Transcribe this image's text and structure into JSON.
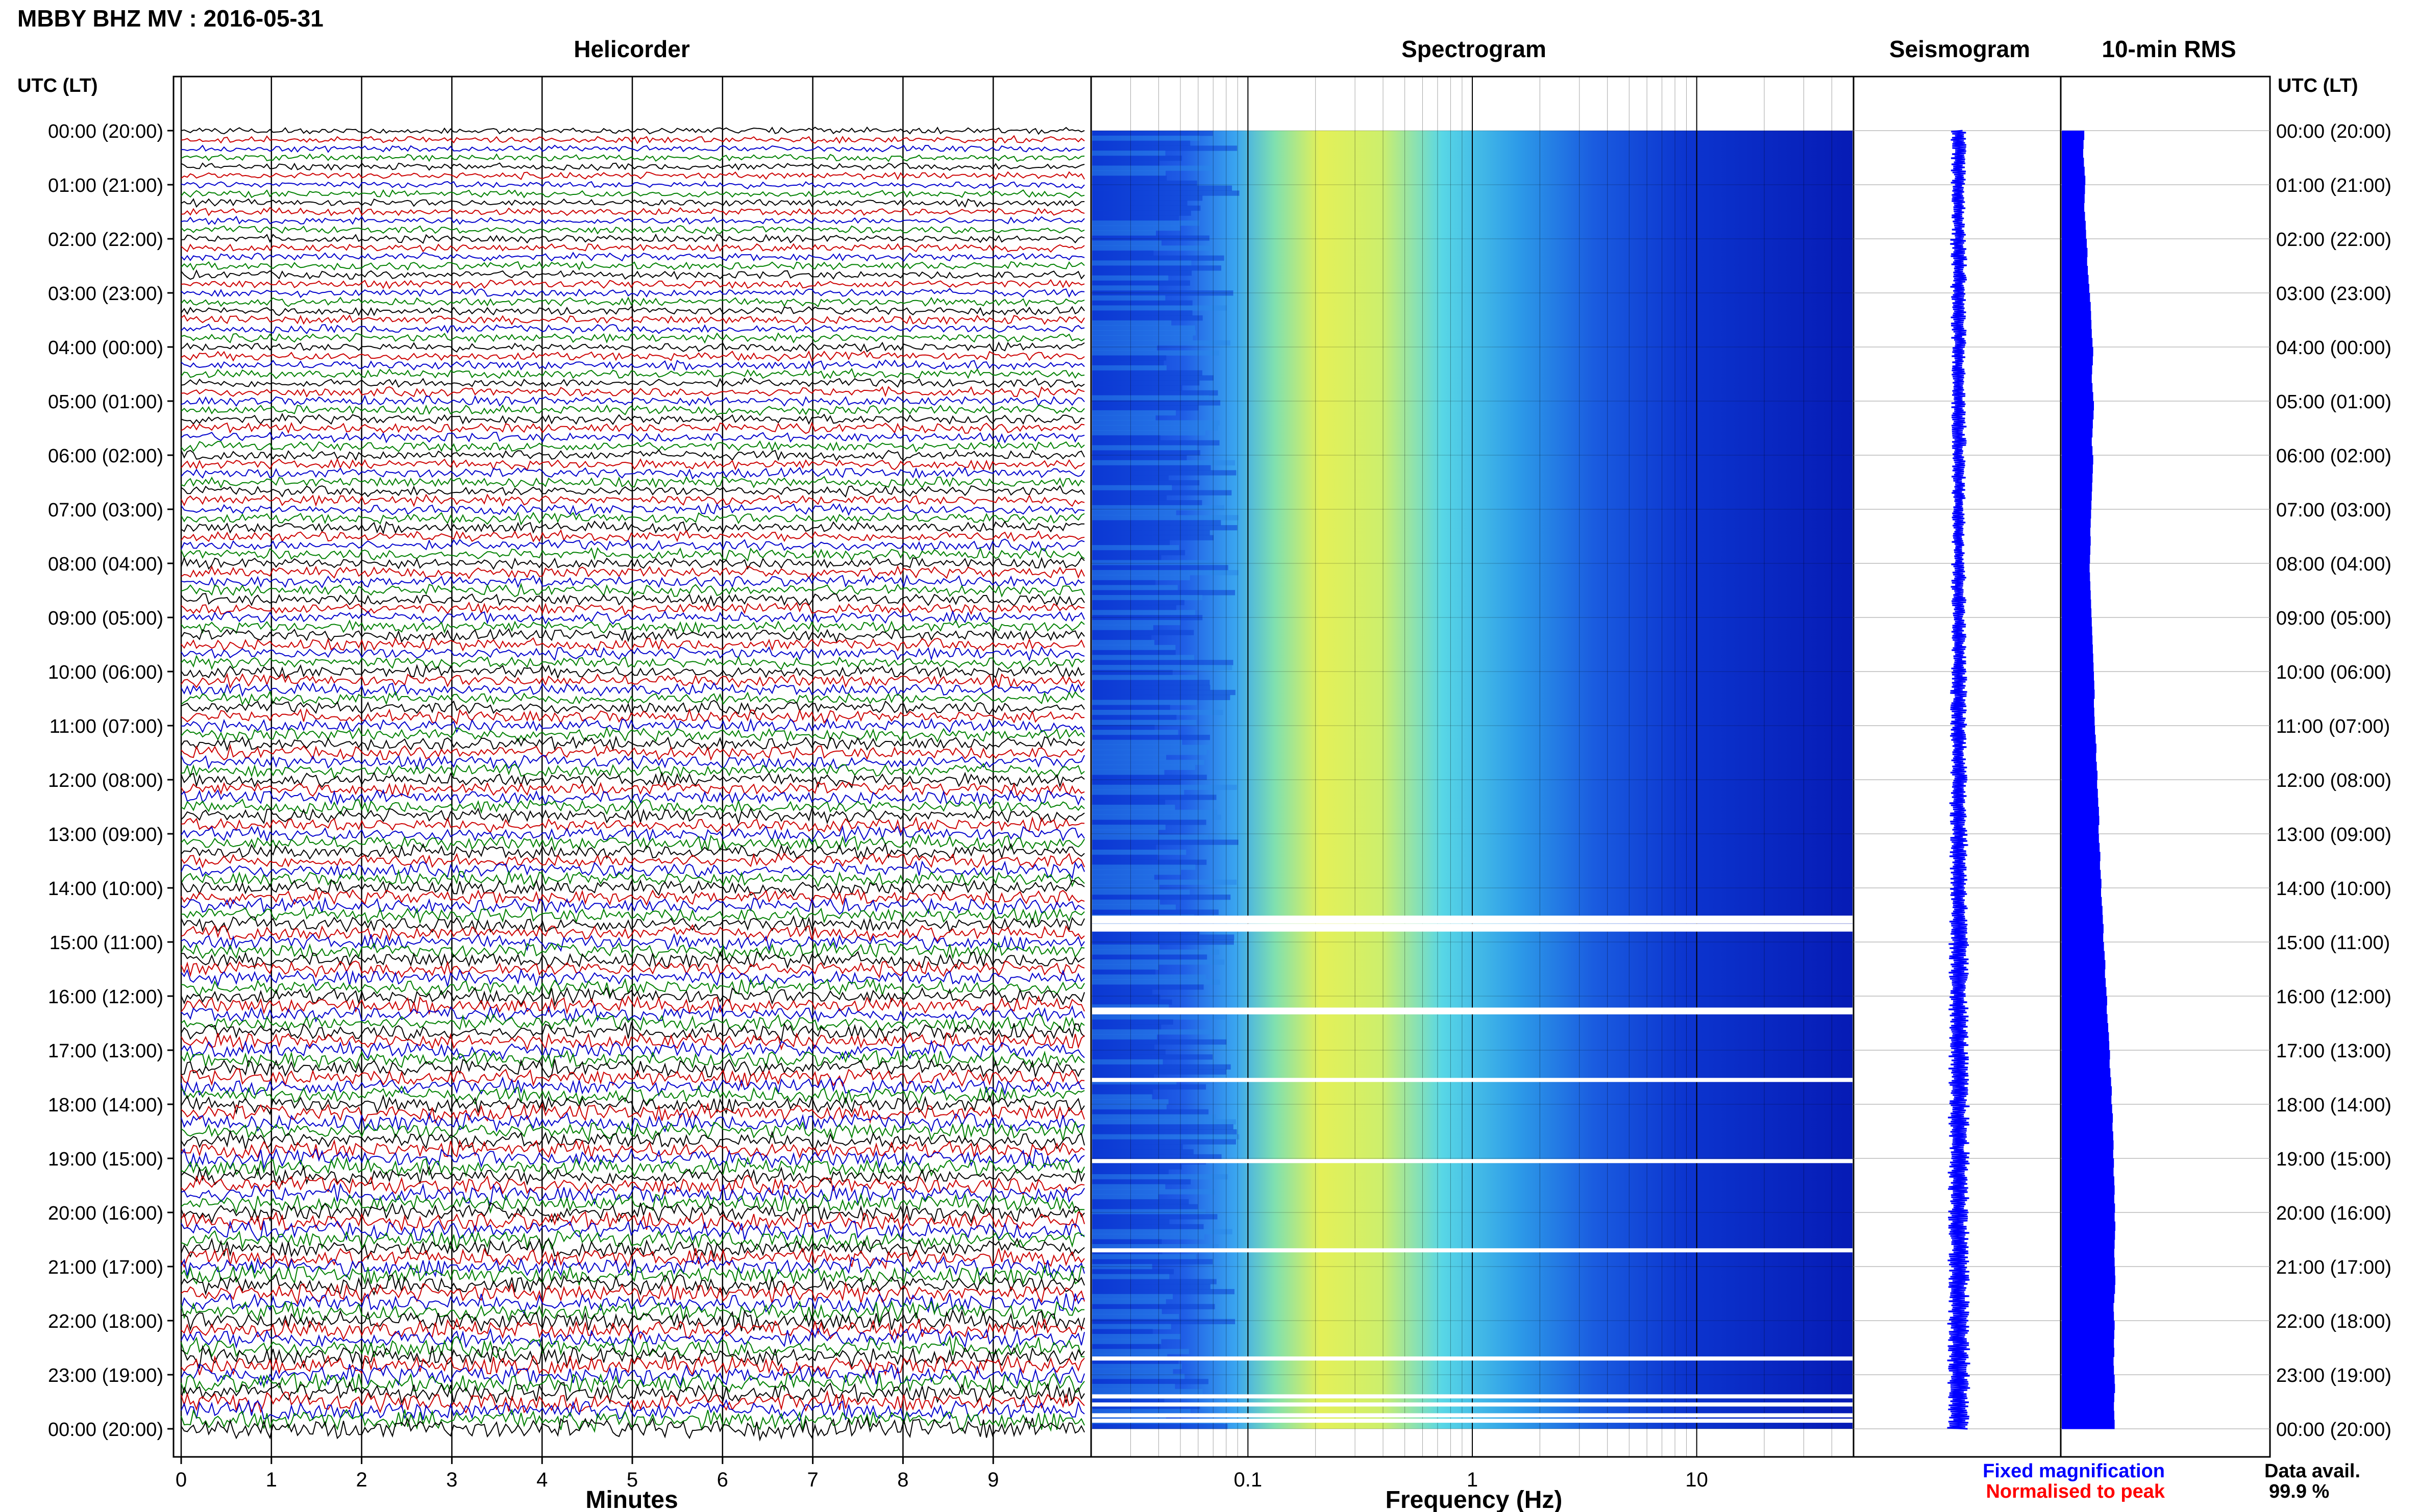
{
  "header": {
    "station_title": "MBBY BHZ MV : 2016-05-31",
    "utc_label_left": "UTC (LT)",
    "utc_label_right": "UTC (LT)"
  },
  "panels": {
    "helicorder_title": "Helicorder",
    "spectrogram_title": "Spectrogram",
    "seismogram_title": "Seismogram",
    "rms_title": "10-min RMS"
  },
  "legend": {
    "fixed_magnification": "Fixed magnification",
    "normalised_to_peak": "Normalised to peak",
    "fixed_color": "#0000ff",
    "normalised_color": "#ff0000"
  },
  "data_availability": {
    "label": "Data avail.",
    "value": "99.9 %"
  },
  "colors": {
    "trace_cycle": [
      "#000000",
      "#cc0000",
      "#0000cc",
      "#008000"
    ],
    "seismogram": "#0000ff",
    "rms_bar": "#0000ff"
  },
  "chart_data": [
    {
      "type": "line",
      "name": "helicorder",
      "xlabel": "Minutes",
      "x_ticks": [
        "0",
        "1",
        "2",
        "3",
        "4",
        "5",
        "6",
        "7",
        "8",
        "9"
      ],
      "xlim": [
        0,
        10
      ],
      "y_tick_labels": [
        "00:00 (20:00)",
        "01:00 (21:00)",
        "02:00 (22:00)",
        "03:00 (23:00)",
        "04:00 (00:00)",
        "05:00 (01:00)",
        "06:00 (02:00)",
        "07:00 (03:00)",
        "08:00 (04:00)",
        "09:00 (05:00)",
        "10:00 (06:00)",
        "11:00 (07:00)",
        "12:00 (08:00)",
        "13:00 (09:00)",
        "14:00 (10:00)",
        "15:00 (11:00)",
        "16:00 (12:00)",
        "17:00 (13:00)",
        "18:00 (14:00)",
        "19:00 (15:00)",
        "20:00 (16:00)",
        "21:00 (17:00)",
        "22:00 (18:00)",
        "23:00 (19:00)",
        "00:00 (20:00)"
      ],
      "traces_per_hour": 6,
      "hours": 24
    },
    {
      "type": "heatmap",
      "name": "spectrogram",
      "xlabel": "Frequency (Hz)",
      "x_scale": "log",
      "x_ticks": [
        "0.1",
        "1",
        "10"
      ],
      "xlim": [
        0.02,
        50
      ],
      "hours": 24,
      "gaps_utc_hours": [
        14.55,
        14.62,
        14.7,
        14.77,
        16.25,
        16.3,
        17.55,
        19.05,
        20.7,
        22.7,
        23.4,
        23.55,
        23.75,
        23.85
      ]
    },
    {
      "type": "line",
      "name": "seismogram",
      "hours": 24,
      "relative_amplitude": [
        1.0,
        0.9,
        1.1,
        1.0,
        0.9,
        1.0,
        0.9,
        0.9,
        1.0,
        1.0,
        1.1,
        1.1,
        1.2,
        1.2,
        1.2,
        1.3,
        1.3,
        1.3,
        1.4,
        1.4,
        1.4,
        1.4,
        1.5,
        1.5
      ]
    },
    {
      "type": "bar",
      "name": "10-min RMS",
      "hours": 24,
      "values": [
        0.63,
        0.61,
        0.6,
        0.62,
        0.64,
        0.66,
        0.65,
        0.64,
        0.63,
        0.65,
        0.67,
        0.68,
        0.7,
        0.72,
        0.71,
        0.73,
        0.75,
        0.77,
        0.79,
        0.81,
        0.82,
        0.83,
        0.84,
        0.86,
        0.88,
        0.87,
        0.85,
        0.84,
        0.86,
        0.88,
        0.9,
        0.89,
        0.87,
        0.86,
        0.84,
        0.86,
        0.88,
        0.87,
        0.86,
        0.85,
        0.84,
        0.83,
        0.82,
        0.81,
        0.8,
        0.81,
        0.8,
        0.79,
        0.78,
        0.79,
        0.8,
        0.81,
        0.82,
        0.83,
        0.84,
        0.85,
        0.86,
        0.87,
        0.88,
        0.89,
        0.9,
        0.91,
        0.92,
        0.9,
        0.91,
        0.92,
        0.93,
        0.95,
        0.97,
        0.96,
        0.98,
        1.0,
        0.99,
        1.01,
        1.02,
        1.04,
        1.05,
        1.03,
        1.04,
        1.06,
        1.08,
        1.07,
        1.09,
        1.11,
        1.1,
        1.12,
        1.14,
        1.15,
        1.17,
        1.16,
        1.18,
        1.2,
        1.22,
        1.21,
        1.23,
        1.25,
        1.27,
        1.26,
        1.28,
        1.3,
        1.32,
        1.33,
        1.35,
        1.34,
        1.36,
        1.38,
        1.4,
        1.39,
        1.41,
        1.43,
        1.42,
        1.44,
        1.45,
        1.44,
        1.46,
        1.45,
        1.47,
        1.48,
        1.47,
        1.49,
        1.48,
        1.5,
        1.49,
        1.48,
        1.47,
        1.48,
        1.49,
        1.5,
        1.49,
        1.47,
        1.45,
        1.46,
        1.48,
        1.47,
        1.46,
        1.47,
        1.45,
        1.46,
        1.48,
        1.49,
        1.47,
        1.46,
        1.47,
        1.48
      ]
    }
  ]
}
